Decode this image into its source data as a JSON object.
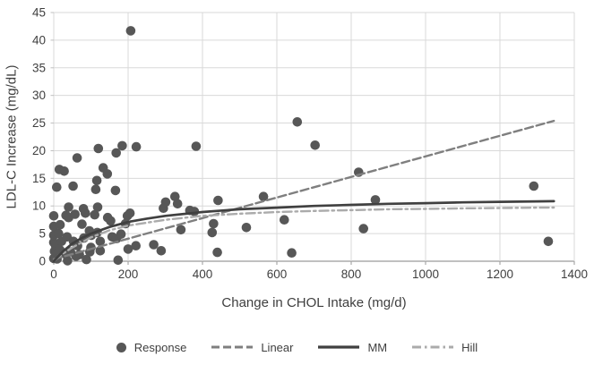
{
  "chart_data": {
    "type": "scatter",
    "title": "",
    "x_axis": {
      "label": "Change in CHOL Intake (mg/d)",
      "min": 0,
      "max": 1400,
      "tick_step": 200,
      "ticks": [
        0,
        200,
        400,
        600,
        800,
        1000,
        1200,
        1400
      ]
    },
    "y_axis": {
      "label": "LDL-C Increase (mg/dL)",
      "min": 0,
      "max": 45,
      "tick_step": 5,
      "ticks": [
        0,
        5,
        10,
        15,
        20,
        25,
        30,
        35,
        40,
        45
      ]
    },
    "grid": true,
    "legend_position": "bottom",
    "colors": {
      "grid": "#d9d9d9",
      "axis": "#9a9a9a",
      "tick_text": "#3f3f3f"
    },
    "series": [
      {
        "name": "Response",
        "type": "scatter",
        "marker": "circle",
        "color": "#575757",
        "points": [
          [
            0,
            0.5
          ],
          [
            2,
            1.8
          ],
          [
            0,
            3.4
          ],
          [
            0,
            4.7
          ],
          [
            0,
            6.3
          ],
          [
            0,
            8.2
          ],
          [
            5,
            2.8
          ],
          [
            9,
            0.4
          ],
          [
            8,
            13.4
          ],
          [
            13,
            5.0
          ],
          [
            15,
            16.6
          ],
          [
            17,
            6.6
          ],
          [
            17,
            2.0
          ],
          [
            21,
            3.6
          ],
          [
            28,
            16.3
          ],
          [
            28,
            1.4
          ],
          [
            33,
            8.3
          ],
          [
            36,
            4.4
          ],
          [
            37,
            0.1
          ],
          [
            40,
            9.8
          ],
          [
            40,
            7.9
          ],
          [
            45,
            1.7
          ],
          [
            52,
            13.6
          ],
          [
            53,
            3.6
          ],
          [
            57,
            8.5
          ],
          [
            60,
            0.9
          ],
          [
            63,
            18.7
          ],
          [
            64,
            2.8
          ],
          [
            69,
            1.2
          ],
          [
            76,
            6.7
          ],
          [
            80,
            9.5
          ],
          [
            81,
            4.2
          ],
          [
            85,
            8.7
          ],
          [
            88,
            0.3
          ],
          [
            96,
            5.5
          ],
          [
            97,
            1.7
          ],
          [
            100,
            2.5
          ],
          [
            101,
            4.7
          ],
          [
            110,
            8.4
          ],
          [
            113,
            13.0
          ],
          [
            116,
            14.6
          ],
          [
            117,
            5.2
          ],
          [
            118,
            9.8
          ],
          [
            120,
            20.4
          ],
          [
            125,
            3.6
          ],
          [
            125,
            1.9
          ],
          [
            133,
            16.9
          ],
          [
            144,
            15.8
          ],
          [
            145,
            7.9
          ],
          [
            153,
            7.3
          ],
          [
            157,
            4.4
          ],
          [
            166,
            12.8
          ],
          [
            168,
            19.6
          ],
          [
            169,
            4.1
          ],
          [
            173,
            0.2
          ],
          [
            181,
            4.9
          ],
          [
            184,
            20.9
          ],
          [
            193,
            6.8
          ],
          [
            198,
            8.2
          ],
          [
            200,
            2.2
          ],
          [
            205,
            8.7
          ],
          [
            207,
            41.7
          ],
          [
            221,
            2.8
          ],
          [
            222,
            20.7
          ],
          [
            269,
            3.0
          ],
          [
            289,
            1.9
          ],
          [
            295,
            9.6
          ],
          [
            301,
            10.7
          ],
          [
            326,
            11.7
          ],
          [
            333,
            10.4
          ],
          [
            342,
            5.7
          ],
          [
            366,
            9.2
          ],
          [
            378,
            9.0
          ],
          [
            383,
            20.8
          ],
          [
            426,
            5.2
          ],
          [
            430,
            6.8
          ],
          [
            440,
            1.6
          ],
          [
            442,
            11.0
          ],
          [
            518,
            6.1
          ],
          [
            564,
            11.7
          ],
          [
            620,
            7.5
          ],
          [
            640,
            1.5
          ],
          [
            655,
            25.2
          ],
          [
            703,
            21.0
          ],
          [
            820,
            16.1
          ],
          [
            833,
            5.9
          ],
          [
            865,
            11.1
          ],
          [
            1291,
            13.6
          ],
          [
            1330,
            3.6
          ]
        ]
      },
      {
        "name": "Linear",
        "type": "line",
        "style": "dashed",
        "color": "#7f7f7f",
        "points": [
          [
            0,
            0.35
          ],
          [
            1345,
            25.4
          ]
        ]
      },
      {
        "name": "MM",
        "type": "line",
        "style": "solid",
        "color": "#404040",
        "points": [
          [
            0,
            0
          ],
          [
            25,
            1.8
          ],
          [
            50,
            3.2
          ],
          [
            75,
            4.2
          ],
          [
            100,
            5.0
          ],
          [
            150,
            6.2
          ],
          [
            200,
            7.1
          ],
          [
            250,
            7.7
          ],
          [
            300,
            8.2
          ],
          [
            400,
            8.9
          ],
          [
            500,
            9.4
          ],
          [
            600,
            9.7
          ],
          [
            700,
            10.0
          ],
          [
            800,
            10.2
          ],
          [
            900,
            10.4
          ],
          [
            1000,
            10.5
          ],
          [
            1100,
            10.65
          ],
          [
            1200,
            10.75
          ],
          [
            1300,
            10.83
          ],
          [
            1345,
            10.86
          ]
        ]
      },
      {
        "name": "Hill",
        "type": "line",
        "style": "dash-dot",
        "color": "#ababab",
        "points": [
          [
            0,
            0
          ],
          [
            25,
            1.4
          ],
          [
            50,
            2.5
          ],
          [
            100,
            4.3
          ],
          [
            150,
            5.6
          ],
          [
            200,
            6.45
          ],
          [
            300,
            7.5
          ],
          [
            400,
            8.2
          ],
          [
            500,
            8.6
          ],
          [
            600,
            8.9
          ],
          [
            700,
            9.1
          ],
          [
            800,
            9.25
          ],
          [
            900,
            9.4
          ],
          [
            1000,
            9.47
          ],
          [
            1100,
            9.56
          ],
          [
            1200,
            9.63
          ],
          [
            1300,
            9.69
          ],
          [
            1345,
            9.71
          ]
        ]
      }
    ]
  }
}
